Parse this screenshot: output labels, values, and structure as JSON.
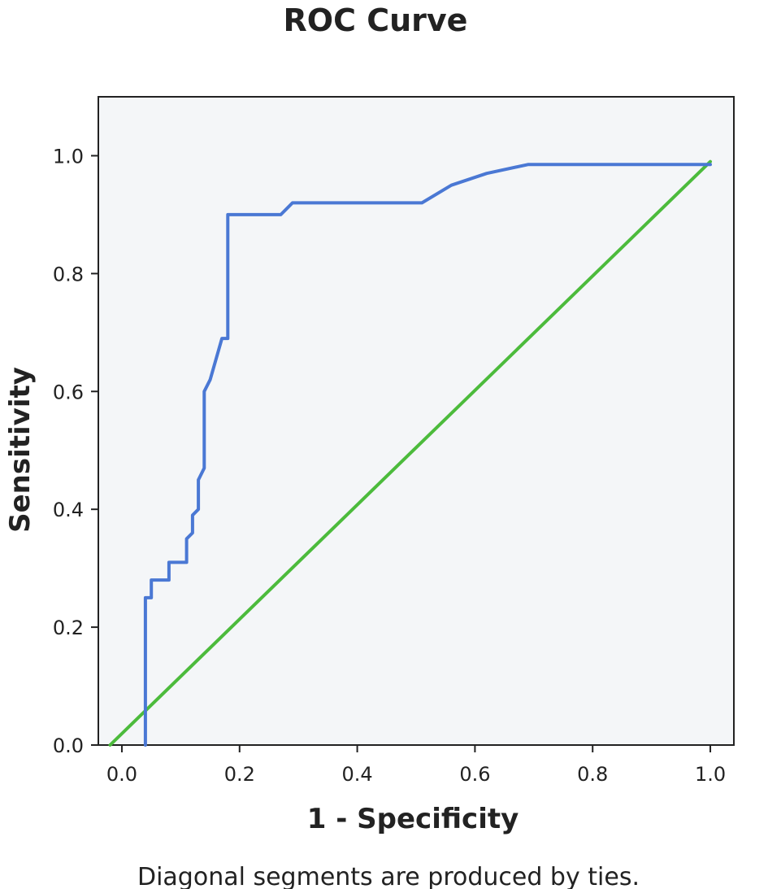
{
  "chart_data": {
    "type": "line",
    "title": "ROC Curve",
    "xlabel": "1 - Specificity",
    "ylabel": "Sensitivity",
    "footnote": "Diagonal segments are produced by ties.",
    "xlim": [
      -0.04,
      1.04
    ],
    "ylim": [
      0.0,
      1.1
    ],
    "xticks": [
      "0.0",
      "0.2",
      "0.4",
      "0.6",
      "0.8",
      "1.0"
    ],
    "yticks": [
      "0.0",
      "0.2",
      "0.4",
      "0.6",
      "0.8",
      "1.0"
    ],
    "grid": false,
    "plot_background": "#f4f6f8",
    "series": [
      {
        "color": "#4a78d4",
        "x": [
          0.04,
          0.04,
          0.05,
          0.05,
          0.08,
          0.08,
          0.11,
          0.11,
          0.12,
          0.12,
          0.13,
          0.13,
          0.14,
          0.14,
          0.15,
          0.17,
          0.18,
          0.18,
          0.27,
          0.29,
          0.51,
          0.56,
          0.62,
          0.69,
          1.0
        ],
        "y": [
          0.0,
          0.25,
          0.25,
          0.28,
          0.28,
          0.31,
          0.31,
          0.35,
          0.36,
          0.39,
          0.4,
          0.45,
          0.47,
          0.6,
          0.62,
          0.69,
          0.69,
          0.9,
          0.9,
          0.92,
          0.92,
          0.95,
          0.97,
          0.985,
          0.985
        ]
      },
      {
        "color": "#4cbb3c",
        "x": [
          -0.02,
          1.0
        ],
        "y": [
          0.0,
          0.99
        ]
      }
    ]
  }
}
